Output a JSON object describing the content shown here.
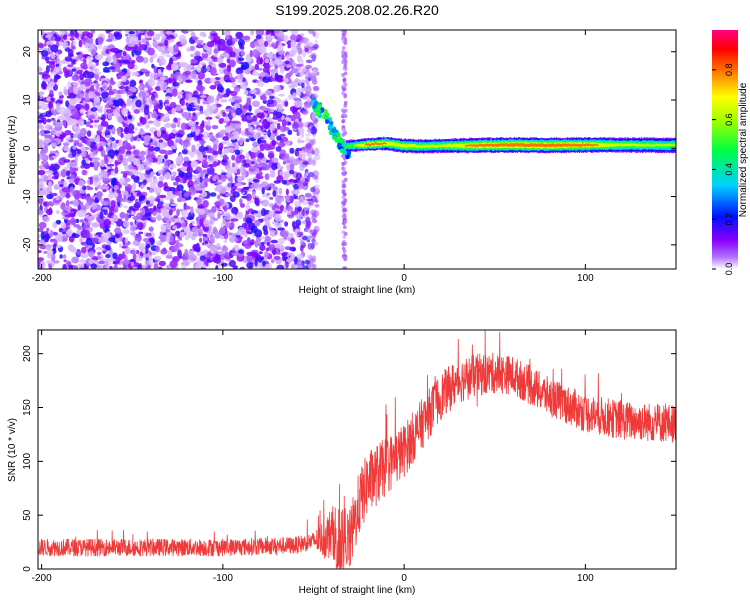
{
  "title": "S199.2025.208.02.26.R20",
  "chart_data": [
    {
      "type": "heatmap",
      "xlabel": "Height of straight line (km)",
      "ylabel": "Frequency (Hz)",
      "xlim": [
        -202,
        150
      ],
      "ylim": [
        -25,
        24.5
      ],
      "xticks": [
        -200,
        -100,
        0,
        100
      ],
      "xtick_labels": [
        "-200",
        "-100",
        "0",
        "100"
      ],
      "yticks": [
        -20,
        -10,
        0,
        10,
        20
      ],
      "ytick_labels": [
        "-20",
        "-10",
        "0",
        "10",
        "20"
      ],
      "colorbar": {
        "label": "Normalized spectral amplitude",
        "range": [
          0,
          0.96
        ],
        "ticks": [
          0.0,
          0.2,
          0.4,
          0.6,
          0.8
        ],
        "tick_labels": [
          "0.0",
          "0.2",
          "0.4",
          "0.6",
          "0.8"
        ],
        "colors": [
          "#ffffff",
          "#8a00ff",
          "#0010ff",
          "#00d0ff",
          "#00ff40",
          "#a0ff00",
          "#ffff00",
          "#ff8000",
          "#ff0000",
          "#ff0080"
        ]
      },
      "noise_region": {
        "x_range": [
          -202,
          -48
        ],
        "amplitude": [
          0.02,
          0.2
        ]
      },
      "transition_band": {
        "x": [
          -50,
          -44,
          -40,
          -36,
          -33,
          -30
        ],
        "freq": [
          9,
          7,
          4,
          1.5,
          0,
          -1
        ]
      },
      "carrier": {
        "x": [
          -30,
          -20,
          -10,
          0,
          10,
          20,
          40,
          60,
          80,
          100,
          120,
          150
        ],
        "freq": [
          0.5,
          0.8,
          1.0,
          0.5,
          0.4,
          0.5,
          0.6,
          0.7,
          0.6,
          0.7,
          0.7,
          0.6
        ],
        "half_width_hz": [
          1.2,
          1.2,
          1.3,
          1.4,
          1.4,
          1.4,
          1.5,
          1.5,
          1.5,
          1.5,
          1.5,
          1.6
        ],
        "peak_amplitude": [
          0.6,
          0.85,
          0.8,
          0.75,
          0.7,
          0.7,
          0.85,
          0.9,
          0.9,
          0.85,
          0.7,
          0.65
        ]
      },
      "gap_region": {
        "x_range": [
          -48,
          -33
        ]
      },
      "grid": false
    },
    {
      "type": "line",
      "color": "#ef3a3a",
      "xlabel": "Height of straight line (km)",
      "ylabel": "SNR (10 * v/v)",
      "xlim": [
        -202,
        150
      ],
      "ylim": [
        0,
        222
      ],
      "xticks": [
        -200,
        -100,
        0,
        100
      ],
      "xtick_labels": [
        "-200",
        "-100",
        "0",
        "100"
      ],
      "yticks": [
        0,
        50,
        100,
        150,
        200
      ],
      "ytick_labels": [
        "0",
        "50",
        "100",
        "150",
        "200"
      ],
      "trend": {
        "x": [
          -202,
          -150,
          -100,
          -60,
          -45,
          -38,
          -35,
          -30,
          -25,
          -20,
          -10,
          0,
          10,
          20,
          30,
          40,
          50,
          60,
          70,
          80,
          100,
          120,
          150
        ],
        "y": [
          20,
          20,
          20,
          22,
          28,
          35,
          30,
          25,
          60,
          80,
          95,
          110,
          135,
          160,
          175,
          180,
          182,
          180,
          170,
          160,
          145,
          138,
          135
        ]
      },
      "noise_amplitude": {
        "x": [
          -202,
          -50,
          -40,
          -30,
          -20,
          0,
          20,
          60,
          100,
          150
        ],
        "y": [
          8,
          8,
          25,
          30,
          30,
          25,
          22,
          18,
          18,
          18
        ]
      },
      "grid": false
    }
  ]
}
